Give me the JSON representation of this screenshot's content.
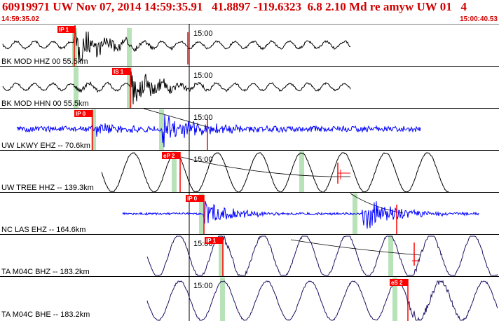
{
  "header": {
    "title": "60919971 UW Nov 07, 2014 14:59:35.91   41.8897 -119.6323  6.8 2.10 Md re amyw UW 01   4",
    "start_time": "14:59:35.02",
    "end_time": "15:00:40.53"
  },
  "colors": {
    "header_text": "#d00000",
    "pick_box": "#ff0000",
    "window": "#b8e2b8",
    "trace_black": "#000000",
    "trace_blue": "#0000ff",
    "trace_navy": "#201060"
  },
  "traces": [
    {
      "label": "BK MOD HHZ 00 55.5km",
      "time_label": "15:00",
      "color": "black",
      "picks": [
        {
          "text": "IP 1"
        }
      ]
    },
    {
      "label": "BK MOD HHN 00 55.5km",
      "time_label": "15:00",
      "color": "black",
      "picks": [
        {
          "text": "IS 1"
        }
      ]
    },
    {
      "label": "UW LKWY EHZ -- 70.6km",
      "time_label": "15:00",
      "color": "blue",
      "picks": [
        {
          "text": "IP 0"
        }
      ]
    },
    {
      "label": "UW TREE HHZ -- 139.3km",
      "time_label": "15:00",
      "color": "black",
      "picks": [
        {
          "text": "eP 2"
        }
      ]
    },
    {
      "label": "NC LAS EHZ -- 164.6km",
      "time_label": "15:00",
      "color": "blue",
      "picks": [
        {
          "text": "IP 0"
        }
      ]
    },
    {
      "label": "TA M04C BHZ -- 183.2km",
      "time_label": "15:00",
      "color": "navy",
      "picks": [
        {
          "text": "IP 1"
        }
      ]
    },
    {
      "label": "TA M04C BHE -- 183.2km",
      "time_label": "15:00",
      "color": "navy",
      "picks": [
        {
          "text": "eS 2"
        }
      ]
    }
  ]
}
